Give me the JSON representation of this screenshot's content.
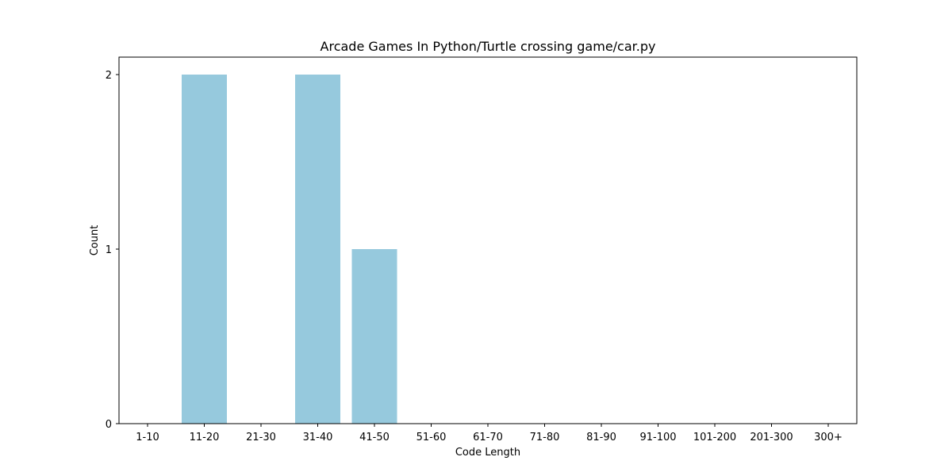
{
  "chart_data": {
    "type": "bar",
    "title": "Arcade Games In Python/Turtle crossing game/car.py",
    "xlabel": "Code Length",
    "ylabel": "Count",
    "categories": [
      "1-10",
      "11-20",
      "21-30",
      "31-40",
      "41-50",
      "51-60",
      "61-70",
      "71-80",
      "81-90",
      "91-100",
      "101-200",
      "201-300",
      "300+"
    ],
    "values": [
      0,
      2,
      0,
      2,
      1,
      0,
      0,
      0,
      0,
      0,
      0,
      0,
      0
    ],
    "ylim": [
      0,
      2.1
    ],
    "yticks": [
      0,
      1,
      2
    ],
    "grid": false,
    "bar_color": "#96c9dd"
  }
}
